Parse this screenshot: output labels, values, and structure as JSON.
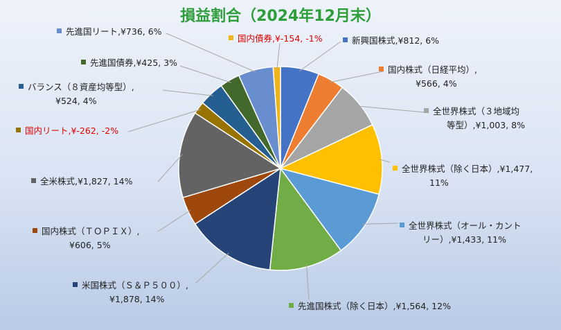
{
  "chart_data": {
    "type": "pie",
    "title": "損益割合（2024年12月末）",
    "slices": [
      {
        "name": "新興国株式",
        "value": 812,
        "percent": "6%",
        "label": [
          "新興国株式,¥812, 6%"
        ],
        "color": "#4472c4"
      },
      {
        "name": "国内株式（日経平均）",
        "value": 566,
        "percent": "4%",
        "label": [
          "国内株式（日経平均）,",
          "¥566, 4%"
        ],
        "color": "#ed7d31"
      },
      {
        "name": "全世界株式（３地域均等型）",
        "value": 1003,
        "percent": "8%",
        "label": [
          "全世界株式（３地域均",
          "等型）,¥1,003, 8%"
        ],
        "color": "#a5a5a5"
      },
      {
        "name": "全世界株式（除く日本）",
        "value": 1477,
        "percent": "11%",
        "label": [
          "全世界株式（除く日本）,¥1,477,",
          "11%"
        ],
        "color": "#ffc000"
      },
      {
        "name": "全世界株式（オール・カントリー）",
        "value": 1433,
        "percent": "11%",
        "label": [
          "全世界株式（オール・カント",
          "リー）,¥1,433, 11%"
        ],
        "color": "#5b9bd5"
      },
      {
        "name": "先進国株式（除く日本）",
        "value": 1564,
        "percent": "12%",
        "label": [
          "先進国株式（除く日本）,¥1,564, 12%"
        ],
        "color": "#70ad47"
      },
      {
        "name": "米国株式（Ｓ＆Ｐ５００）",
        "value": 1878,
        "percent": "14%",
        "label": [
          "米国株式（Ｓ＆Ｐ５００）,",
          "¥1,878, 14%"
        ],
        "color": "#264478"
      },
      {
        "name": "国内株式（ＴＯＰＩＸ）",
        "value": 606,
        "percent": "5%",
        "label": [
          "国内株式（ＴＯＰＩＸ）,",
          "¥606, 5%"
        ],
        "color": "#9e480e"
      },
      {
        "name": "全米株式",
        "value": 1827,
        "percent": "14%",
        "label": [
          "全米株式,¥1,827, 14%"
        ],
        "color": "#636363"
      },
      {
        "name": "国内リート",
        "value": -262,
        "percent": "-2%",
        "label": [
          "国内リート,¥-262, -2%"
        ],
        "color": "#997300",
        "negative": true
      },
      {
        "name": "バランス（８資産均等型）",
        "value": 524,
        "percent": "4%",
        "label": [
          "バランス（８資産均等型）,",
          "¥524, 4%"
        ],
        "color": "#255e91"
      },
      {
        "name": "先進国債券",
        "value": 425,
        "percent": "3%",
        "label": [
          "先進国債券,¥425, 3%"
        ],
        "color": "#43682b"
      },
      {
        "name": "先進国リート",
        "value": 736,
        "percent": "6%",
        "label": [
          "先進国リート,¥736, 6%"
        ],
        "color": "#698ed0"
      },
      {
        "name": "国内債券",
        "value": -154,
        "percent": "-1%",
        "label": [
          "国内債券,¥-154, -1%"
        ],
        "color": "#f1b51c",
        "negative": true
      }
    ]
  }
}
